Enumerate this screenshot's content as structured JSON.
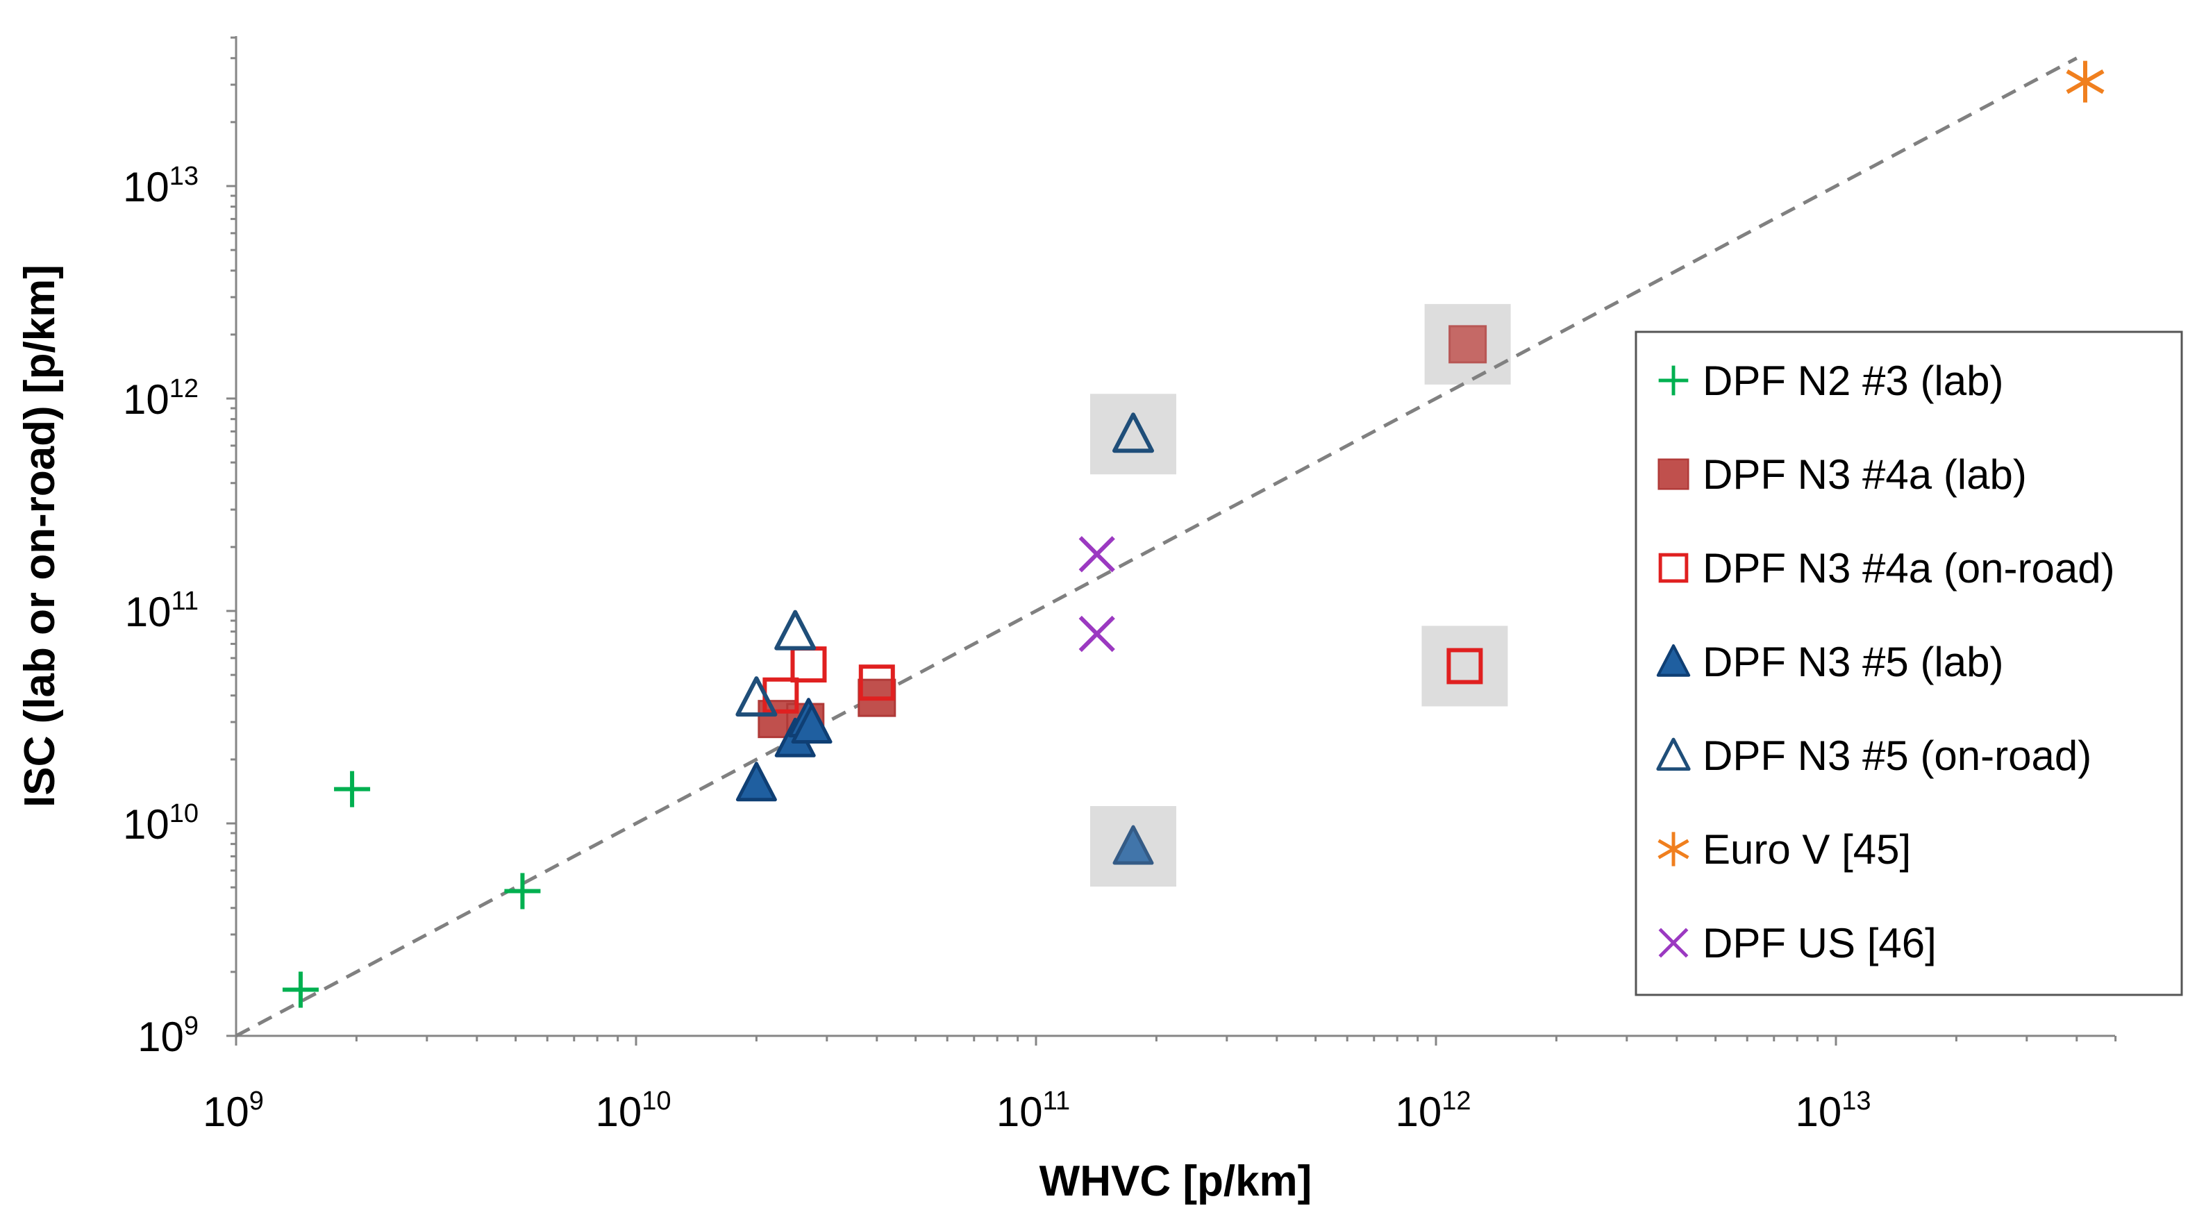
{
  "chart_data": {
    "type": "scatter",
    "title": "",
    "xlabel": "WHVC [p/km]",
    "ylabel": "ISC (lab or on-road) [p/km]",
    "xscale": "log",
    "yscale": "log",
    "xlim": [
      1000000000,
      50000000000000
    ],
    "ylim": [
      1000000000,
      50000000000000
    ],
    "xticks": [
      {
        "base": "10",
        "exp": "9",
        "value": 1000000000
      },
      {
        "base": "10",
        "exp": "10",
        "value": 10000000000
      },
      {
        "base": "10",
        "exp": "11",
        "value": 100000000000
      },
      {
        "base": "10",
        "exp": "12",
        "value": 1000000000000
      },
      {
        "base": "10",
        "exp": "13",
        "value": 10000000000000
      }
    ],
    "yticks": [
      {
        "base": "10",
        "exp": "9",
        "value": 1000000000
      },
      {
        "base": "10",
        "exp": "10",
        "value": 10000000000
      },
      {
        "base": "10",
        "exp": "11",
        "value": 100000000000
      },
      {
        "base": "10",
        "exp": "12",
        "value": 1000000000000
      },
      {
        "base": "10",
        "exp": "13",
        "value": 10000000000000
      }
    ],
    "reference_line": {
      "style": "dashed",
      "color": "#808080",
      "from": [
        1000000000,
        1000000000
      ],
      "to": [
        40000000000000,
        40000000000000
      ]
    },
    "legend_position": "right",
    "series": [
      {
        "name": "DPF N2 #3 (lab)",
        "marker": "plus",
        "color": "#00B050",
        "points": [
          [
            1450000000,
            1650000000
          ],
          [
            1950000000,
            14500000000
          ],
          [
            5200000000,
            4800000000
          ]
        ]
      },
      {
        "name": "DPF N3 #4a (lab)",
        "marker": "square-filled",
        "color": "#C0504D",
        "points": [
          [
            22500000000,
            31000000000
          ],
          [
            26500000000,
            30000000000
          ],
          [
            40000000000,
            39000000000
          ],
          [
            1200000000000,
            1800000000000
          ]
        ],
        "highlighted": [
          3
        ]
      },
      {
        "name": "DPF N3 #4a (on-road)",
        "marker": "square-open",
        "color": "#E02020",
        "points": [
          [
            23000000000,
            40000000000
          ],
          [
            27000000000,
            56000000000
          ],
          [
            40000000000,
            46000000000
          ],
          [
            1180000000000,
            55000000000
          ]
        ],
        "highlighted": [
          3
        ]
      },
      {
        "name": "DPF N3 #5 (lab)",
        "marker": "triangle-filled",
        "color": "#1F5FA0",
        "points": [
          [
            20000000000,
            15500000000
          ],
          [
            25000000000,
            25000000000
          ],
          [
            27000000000,
            31000000000
          ],
          [
            27500000000,
            29000000000
          ],
          [
            175000000000,
            7800000000
          ]
        ],
        "highlighted": [
          4
        ]
      },
      {
        "name": "DPF N3 #5 (on-road)",
        "marker": "triangle-open",
        "color": "#1F4E79",
        "points": [
          [
            20000000000,
            39000000000
          ],
          [
            25000000000,
            80000000000
          ],
          [
            175000000000,
            680000000000
          ]
        ],
        "highlighted": [
          2
        ]
      },
      {
        "name": "Euro V [45]",
        "marker": "asterisk",
        "color": "#F07F1E",
        "points": [
          [
            42000000000000,
            31000000000000
          ]
        ]
      },
      {
        "name": "DPF US [46]",
        "marker": "x",
        "color": "#9B39C1",
        "points": [
          [
            142000000000,
            185000000000
          ],
          [
            142000000000,
            78000000000
          ]
        ]
      }
    ]
  }
}
